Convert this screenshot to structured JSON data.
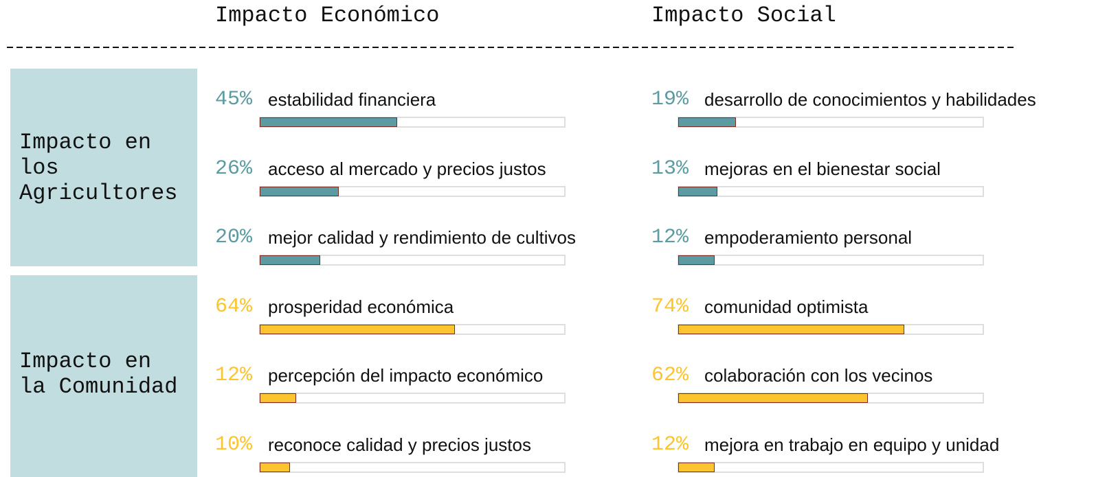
{
  "header": {
    "columns": [
      "Impacto Económico",
      "Impacto Social"
    ]
  },
  "row_labels": [
    "Impacto en los Agricultores",
    "Impacto en la Comunidad"
  ],
  "chart_data": [
    {
      "type": "bar",
      "orientation": "horizontal",
      "color": "#5b9ba1",
      "xlim": [
        0,
        100
      ],
      "categories": [
        "estabilidad financiera",
        "acceso al mercado y precios justos",
        "mejor calidad y rendimiento de cultivos"
      ],
      "values": [
        45,
        26,
        20
      ],
      "value_labels": [
        "45%",
        "26%",
        "20%"
      ]
    },
    {
      "type": "bar",
      "orientation": "horizontal",
      "color": "#5b9ba1",
      "xlim": [
        0,
        100
      ],
      "categories": [
        "desarrollo de conocimientos y habilidades",
        "mejoras en el bienestar social",
        "empoderamiento personal"
      ],
      "values": [
        19,
        13,
        12
      ],
      "value_labels": [
        "19%",
        "13%",
        "12%"
      ]
    },
    {
      "type": "bar",
      "orientation": "horizontal",
      "color": "#fcc52f",
      "xlim": [
        0,
        100
      ],
      "categories": [
        "prosperidad económica",
        "percepción del impacto económico",
        "reconoce calidad y precios justos"
      ],
      "values": [
        64,
        12,
        10
      ],
      "value_labels": [
        "64%",
        "12%",
        "10%"
      ]
    },
    {
      "type": "bar",
      "orientation": "horizontal",
      "color": "#fcc52f",
      "xlim": [
        0,
        100
      ],
      "categories": [
        "comunidad optimista",
        "colaboración con los vecinos",
        "mejora en trabajo en equipo y unidad"
      ],
      "values": [
        74,
        62,
        12
      ],
      "value_labels": [
        "74%",
        "62%",
        "12%"
      ]
    }
  ]
}
